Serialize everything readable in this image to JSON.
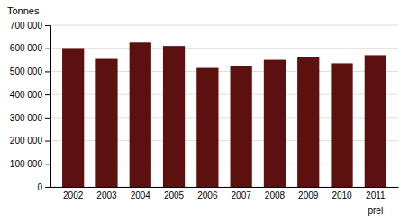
{
  "chart_data": {
    "type": "bar",
    "categories": [
      "2002",
      "2003",
      "2004",
      "2005",
      "2006",
      "2007",
      "2008",
      "2009",
      "2010",
      "2011"
    ],
    "values": [
      601000,
      554000,
      625000,
      610000,
      515000,
      525000,
      550000,
      560000,
      535000,
      570000
    ],
    "color": "#5c1010",
    "ylabel": "Tonnes",
    "annotations": [
      {
        "text": "prel",
        "x": "2011"
      }
    ],
    "ylim": [
      0,
      700000
    ],
    "yticks": [
      0,
      {
        "value": 100000,
        "label": "100 000"
      },
      {
        "value": 200000,
        "label": "200 000"
      },
      {
        "value": 300000,
        "label": "300 000"
      },
      {
        "value": 400000,
        "label": "400 000"
      },
      {
        "value": 500000,
        "label": "500 000"
      },
      {
        "value": 600000,
        "label": "600 000"
      },
      {
        "value": 700000,
        "label": "700 000"
      }
    ],
    "grid": true
  }
}
